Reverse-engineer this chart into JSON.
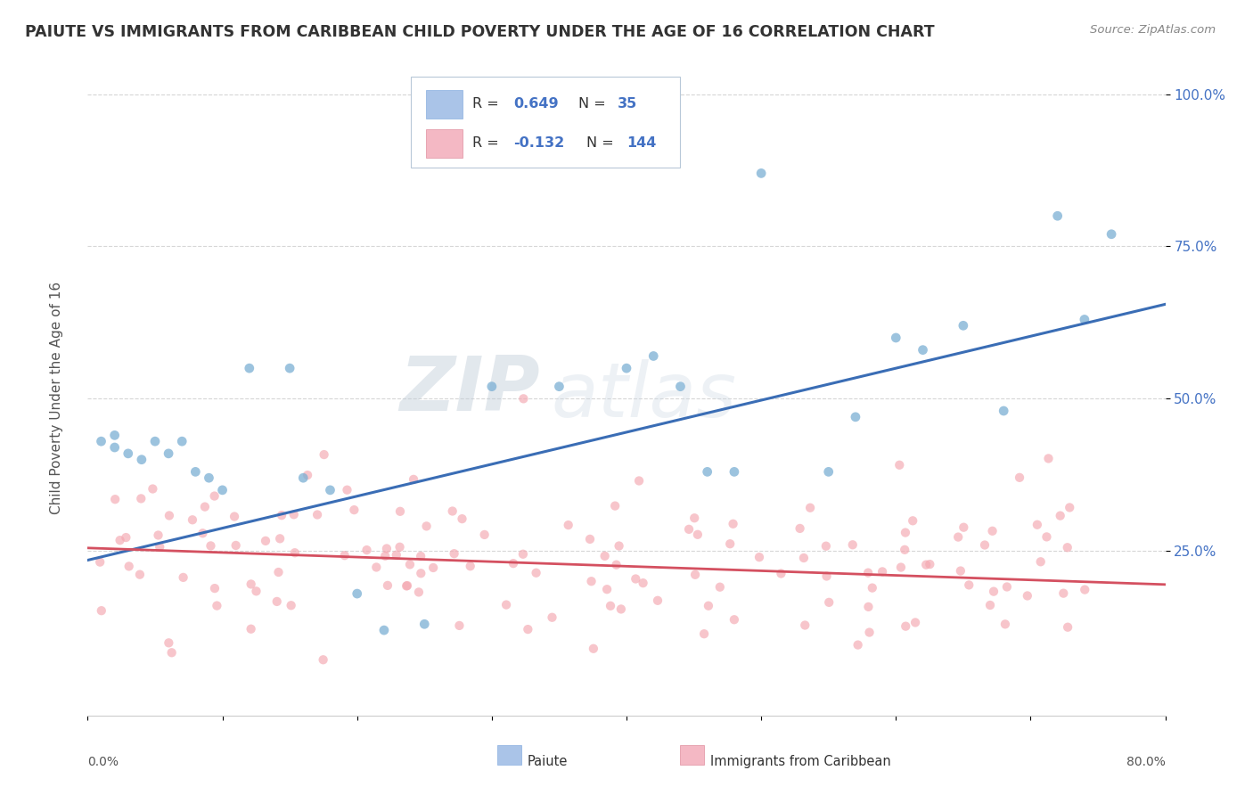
{
  "title": "PAIUTE VS IMMIGRANTS FROM CARIBBEAN CHILD POVERTY UNDER THE AGE OF 16 CORRELATION CHART",
  "source_text": "Source: ZipAtlas.com",
  "ylabel": "Child Poverty Under the Age of 16",
  "ytick_labels": [
    "25.0%",
    "50.0%",
    "75.0%",
    "100.0%"
  ],
  "ytick_values": [
    0.25,
    0.5,
    0.75,
    1.0
  ],
  "xlim": [
    0.0,
    0.8
  ],
  "ylim": [
    -0.02,
    1.05
  ],
  "paiute_color": "#7bafd4",
  "paiute_edge_color": "#5a9abf",
  "caribbean_color": "#f4a7b0",
  "caribbean_edge_color": "#e07080",
  "paiute_line_color": "#3a6db5",
  "caribbean_line_color": "#d45060",
  "watermark_zip": "#c8d4e0",
  "watermark_atlas": "#d0dce8",
  "background_color": "#ffffff",
  "grid_color": "#cccccc",
  "legend_box_color": "#e8eef5",
  "legend_edge_color": "#b0c0d0",
  "paiute_R": 0.649,
  "paiute_N": 35,
  "caribbean_R": -0.132,
  "caribbean_N": 144,
  "paiute_line_start_y": 0.235,
  "paiute_line_end_y": 0.655,
  "caribbean_line_start_y": 0.255,
  "caribbean_line_end_y": 0.195
}
